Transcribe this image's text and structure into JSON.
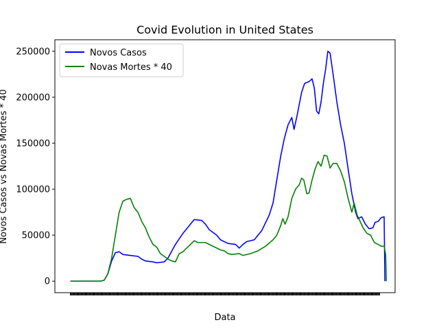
{
  "chart_data": {
    "type": "line",
    "title": "Covid Evolution in United States",
    "xlabel": "Data",
    "ylabel": "Novos Casos vs Novas Mortes * 40",
    "ylim": [
      -12500,
      262500
    ],
    "x_index_range": [
      0,
      412
    ],
    "yticks": [
      0,
      50000,
      100000,
      150000,
      200000,
      250000
    ],
    "ytick_labels": [
      "0",
      "50000",
      "100000",
      "150000",
      "200000",
      "250000"
    ],
    "legend_position": "upper-left",
    "grid": false,
    "series": [
      {
        "name": "Novos Casos",
        "color": "#0000ff",
        "points": [
          [
            0,
            0
          ],
          [
            40,
            0
          ],
          [
            45,
            1000
          ],
          [
            50,
            8000
          ],
          [
            55,
            22000
          ],
          [
            60,
            31000
          ],
          [
            65,
            32000
          ],
          [
            70,
            29000
          ],
          [
            80,
            28000
          ],
          [
            90,
            27000
          ],
          [
            95,
            24000
          ],
          [
            100,
            22000
          ],
          [
            110,
            21000
          ],
          [
            115,
            20000
          ],
          [
            125,
            21000
          ],
          [
            130,
            25000
          ],
          [
            140,
            40000
          ],
          [
            150,
            52000
          ],
          [
            160,
            62000
          ],
          [
            165,
            67000
          ],
          [
            175,
            66000
          ],
          [
            180,
            62000
          ],
          [
            185,
            56000
          ],
          [
            195,
            50000
          ],
          [
            200,
            45000
          ],
          [
            210,
            41000
          ],
          [
            220,
            40000
          ],
          [
            225,
            36000
          ],
          [
            230,
            40000
          ],
          [
            235,
            43000
          ],
          [
            245,
            45000
          ],
          [
            255,
            55000
          ],
          [
            265,
            72000
          ],
          [
            270,
            85000
          ],
          [
            275,
            110000
          ],
          [
            280,
            135000
          ],
          [
            285,
            155000
          ],
          [
            290,
            170000
          ],
          [
            295,
            178000
          ],
          [
            298,
            165000
          ],
          [
            302,
            180000
          ],
          [
            308,
            205000
          ],
          [
            312,
            215000
          ],
          [
            318,
            217000
          ],
          [
            322,
            220000
          ],
          [
            325,
            210000
          ],
          [
            328,
            185000
          ],
          [
            331,
            182000
          ],
          [
            334,
            195000
          ],
          [
            337,
            215000
          ],
          [
            340,
            230000
          ],
          [
            343,
            250000
          ],
          [
            346,
            248000
          ],
          [
            350,
            225000
          ],
          [
            355,
            195000
          ],
          [
            360,
            170000
          ],
          [
            365,
            150000
          ],
          [
            370,
            122000
          ],
          [
            375,
            95000
          ],
          [
            380,
            75000
          ],
          [
            383,
            68000
          ],
          [
            388,
            70000
          ],
          [
            393,
            62000
          ],
          [
            398,
            57000
          ],
          [
            403,
            58000
          ],
          [
            406,
            64000
          ],
          [
            410,
            65000
          ],
          [
            414,
            69000
          ],
          [
            418,
            70000
          ],
          [
            419,
            0
          ]
        ]
      },
      {
        "name": "Novas Mortes * 40",
        "color": "#008000",
        "points": [
          [
            0,
            0
          ],
          [
            40,
            0
          ],
          [
            45,
            1000
          ],
          [
            50,
            8000
          ],
          [
            55,
            25000
          ],
          [
            60,
            50000
          ],
          [
            65,
            75000
          ],
          [
            70,
            87000
          ],
          [
            75,
            89000
          ],
          [
            80,
            90000
          ],
          [
            85,
            80000
          ],
          [
            90,
            75000
          ],
          [
            95,
            65000
          ],
          [
            100,
            58000
          ],
          [
            105,
            48000
          ],
          [
            110,
            40000
          ],
          [
            115,
            37000
          ],
          [
            120,
            30000
          ],
          [
            125,
            27000
          ],
          [
            130,
            24000
          ],
          [
            135,
            22000
          ],
          [
            140,
            21000
          ],
          [
            145,
            30000
          ],
          [
            150,
            32000
          ],
          [
            155,
            36000
          ],
          [
            160,
            40000
          ],
          [
            165,
            44000
          ],
          [
            170,
            42000
          ],
          [
            180,
            42000
          ],
          [
            190,
            38000
          ],
          [
            200,
            34000
          ],
          [
            205,
            33000
          ],
          [
            210,
            30000
          ],
          [
            215,
            29000
          ],
          [
            225,
            30000
          ],
          [
            230,
            28000
          ],
          [
            240,
            30000
          ],
          [
            250,
            33000
          ],
          [
            260,
            38000
          ],
          [
            270,
            45000
          ],
          [
            275,
            50000
          ],
          [
            280,
            60000
          ],
          [
            283,
            68000
          ],
          [
            286,
            62000
          ],
          [
            290,
            70000
          ],
          [
            295,
            90000
          ],
          [
            300,
            100000
          ],
          [
            305,
            105000
          ],
          [
            308,
            112000
          ],
          [
            311,
            110000
          ],
          [
            315,
            95000
          ],
          [
            318,
            96000
          ],
          [
            322,
            110000
          ],
          [
            326,
            122000
          ],
          [
            330,
            130000
          ],
          [
            334,
            125000
          ],
          [
            338,
            137000
          ],
          [
            342,
            136000
          ],
          [
            346,
            123000
          ],
          [
            350,
            128000
          ],
          [
            355,
            128000
          ],
          [
            360,
            120000
          ],
          [
            365,
            108000
          ],
          [
            370,
            90000
          ],
          [
            375,
            75000
          ],
          [
            378,
            85000
          ],
          [
            382,
            72000
          ],
          [
            386,
            65000
          ],
          [
            390,
            58000
          ],
          [
            395,
            52000
          ],
          [
            400,
            50000
          ],
          [
            405,
            42000
          ],
          [
            410,
            40000
          ],
          [
            414,
            38000
          ],
          [
            418,
            38000
          ],
          [
            420,
            29000
          ],
          [
            421,
            0
          ]
        ]
      }
    ]
  }
}
